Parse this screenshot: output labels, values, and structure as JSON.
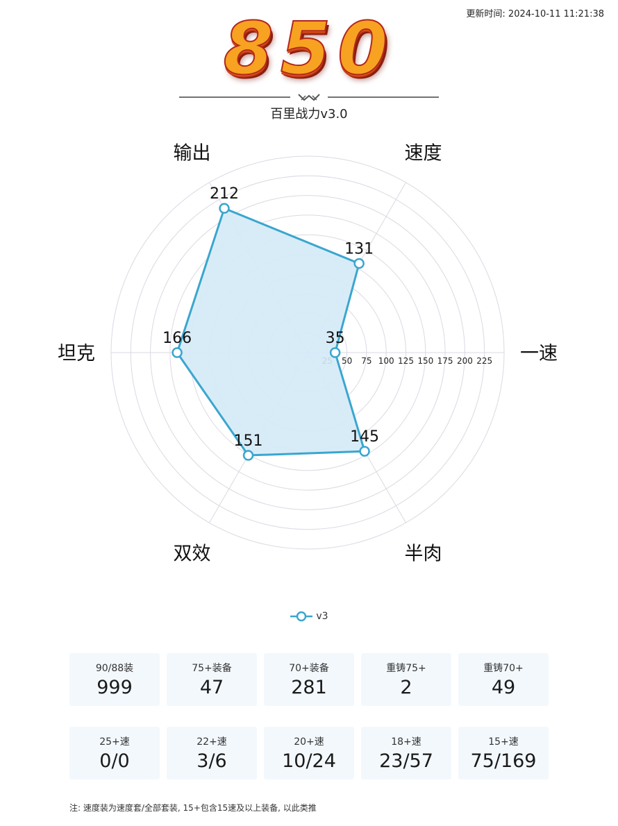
{
  "updated": "更新时间: 2024-10-11 11:21:38",
  "score": "850",
  "subtitle": "百里战力v3.0",
  "chart_data": {
    "type": "radar",
    "axes": [
      "一速",
      "速度",
      "输出",
      "坦克",
      "双效",
      "半肉"
    ],
    "ticks": [
      25,
      50,
      75,
      100,
      125,
      150,
      175,
      200,
      225
    ],
    "rmax": 250,
    "series": [
      {
        "name": "v3",
        "values": [
          35,
          131,
          212,
          166,
          151,
          145
        ]
      }
    ],
    "colors": {
      "line": "#3aa6cf",
      "fill": "#d4eaf7",
      "grid": "#d9d9e3"
    },
    "legend": "bottom-center"
  },
  "stats_row1": [
    {
      "label": "90/88装",
      "value": "999"
    },
    {
      "label": "75+装备",
      "value": "47"
    },
    {
      "label": "70+装备",
      "value": "281"
    },
    {
      "label": "重铸75+",
      "value": "2"
    },
    {
      "label": "重铸70+",
      "value": "49"
    }
  ],
  "stats_row2": [
    {
      "label": "25+速",
      "value": "0/0"
    },
    {
      "label": "22+速",
      "value": "3/6"
    },
    {
      "label": "20+速",
      "value": "10/24"
    },
    {
      "label": "18+速",
      "value": "23/57"
    },
    {
      "label": "15+速",
      "value": "75/169"
    }
  ],
  "note": "注: 速度装为速度套/全部套装, 15+包含15速及以上装备, 以此类推"
}
